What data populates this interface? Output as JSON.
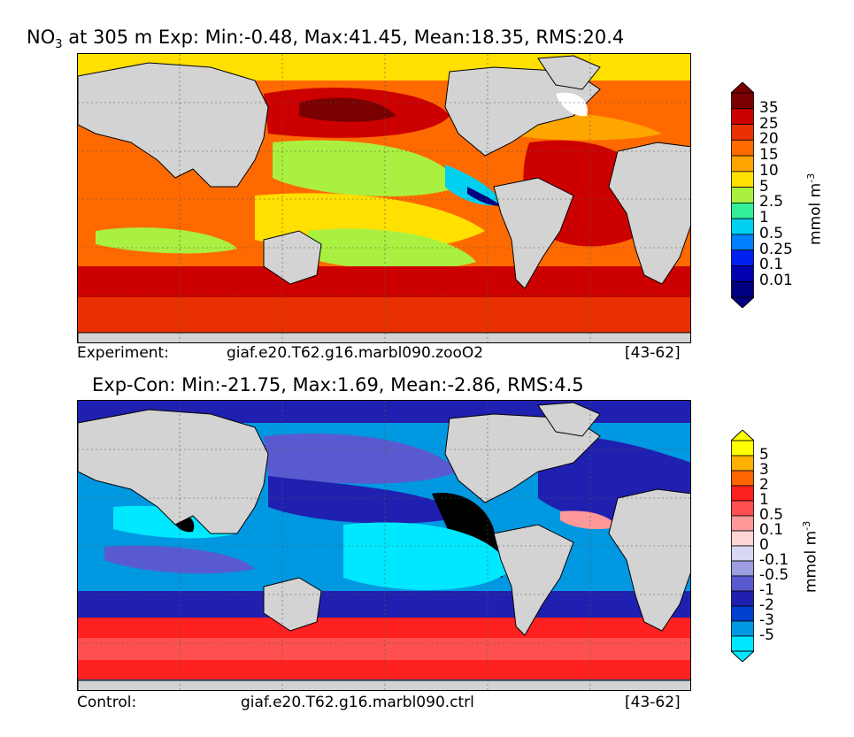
{
  "panels": [
    {
      "title_var": "NO",
      "title_sub": "3",
      "title_rest": " at 305 m Exp: Min:-0.48, Max:41.45, Mean:18.35, RMS:20.4",
      "footer_label": "Experiment:",
      "footer_case": "giaf.e20.T62.g16.marbl090.zooO2",
      "footer_years": "[43-62]",
      "colorbar": {
        "unit_text": "mmol m",
        "unit_exp": "-3",
        "labels": [
          "35",
          "25",
          "20",
          "15",
          "10",
          "5",
          "2.5",
          "1",
          "0.5",
          "0.25",
          "0.1",
          "0.01"
        ],
        "colors": [
          "#7a0000",
          "#cc0000",
          "#e83000",
          "#ff6a00",
          "#ffa500",
          "#ffe000",
          "#aaf040",
          "#33ee99",
          "#00d0f0",
          "#0080ff",
          "#0020f0",
          "#0000b0",
          "#000080"
        ]
      }
    },
    {
      "title": "Exp-Con: Min:-21.75, Max:1.69, Mean:-2.86, RMS:4.5",
      "footer_label": "Control:",
      "footer_case": "giaf.e20.T62.g16.marbl090.ctrl",
      "footer_years": "[43-62]",
      "colorbar": {
        "unit_text": "mmol m",
        "unit_exp": "-3",
        "labels": [
          "5",
          "3",
          "2",
          "1",
          "0.5",
          "0.1",
          "0",
          "-0.1",
          "-0.5",
          "-1",
          "-2",
          "-3",
          "-5"
        ],
        "colors": [
          "#ffff00",
          "#ffb000",
          "#ff6600",
          "#ff2020",
          "#ff5050",
          "#ff9999",
          "#ffd6d6",
          "#d8d8f4",
          "#9c9ce0",
          "#5a5ad0",
          "#2020b0",
          "#0040d0",
          "#0098e0",
          "#00e8ff"
        ]
      }
    }
  ],
  "colors": {
    "land": "#d3d3d3",
    "ice": "#ffffff",
    "coast": "#000000",
    "grid": "#555555"
  }
}
